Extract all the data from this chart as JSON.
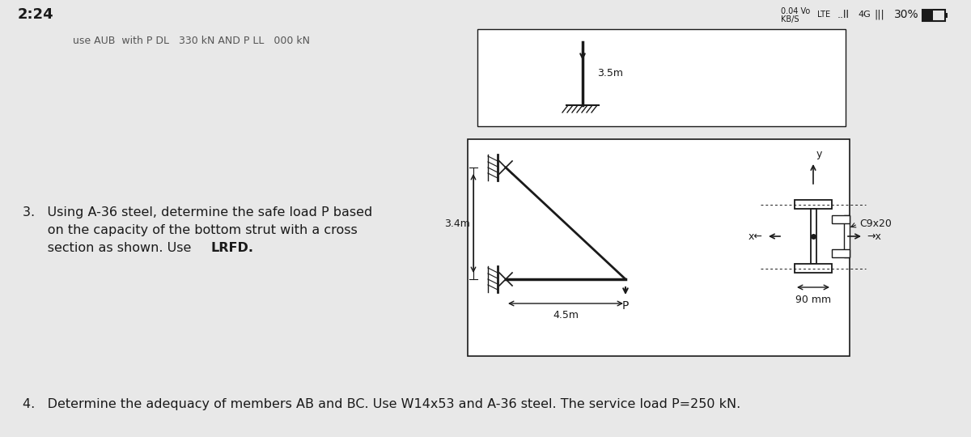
{
  "bg_color": "#e8e8e8",
  "box_bg": "#ffffff",
  "line_color": "#1a1a1a",
  "text_color": "#1a1a1a",
  "status_time": "2:24",
  "top_partial_text": "use AUB  with P DL   330 kN AND P LL   000 kN",
  "problem3_line1": "3.   Using A-36 steel, determine the safe load P based",
  "problem3_line2": "      on the capacity of the bottom strut with a cross",
  "problem3_line3_plain": "      section as shown. Use ",
  "problem3_line3_bold": "LRFD.",
  "problem4_text": "4.   Determine the adequacy of members AB and BC. Use W14x53 and A-36 steel. The service load P=250 kN.",
  "dim_34": "3.4m",
  "dim_45": "4.5m",
  "dim_35": "3.5m",
  "dim_90": "90 mm",
  "label_P": "P",
  "label_y": "y",
  "label_C9x20": "C9x20"
}
